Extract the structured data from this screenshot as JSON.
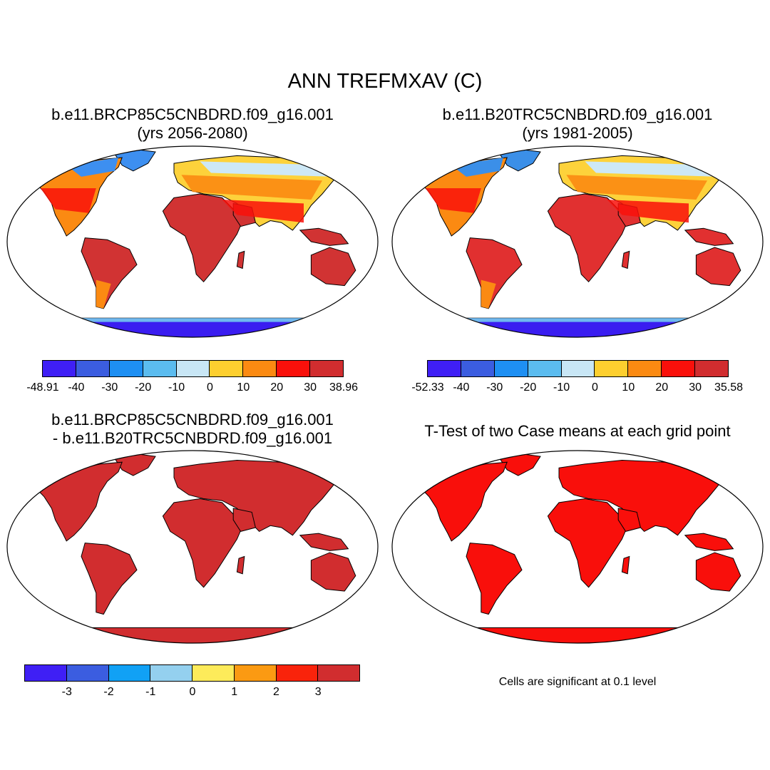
{
  "figure": {
    "title": "ANN TREFMXAV (C)"
  },
  "panels": [
    {
      "id": "case1",
      "title_line1": "b.e11.BRCP85C5CNBDRD.f09_g16.001",
      "title_line2": "(yrs 2056-2080)",
      "palette": "absolute",
      "land_colors": {
        "arctic": "#3d8ff0",
        "highlat": "#cde8f6",
        "midlat": "#fdd23b",
        "subtrop": "#fb8a12",
        "tropics": "#d13333",
        "antarctic": "#3a1df0"
      },
      "colorbar": {
        "labels": [
          "-48.91",
          "-40",
          "-30",
          "-20",
          "-10",
          "0",
          "10",
          "20",
          "30",
          "38.96"
        ],
        "colors": [
          "#3f1ff5",
          "#3b5de0",
          "#1e8ff2",
          "#5bbcef",
          "#c8e6f5",
          "#fdcf2f",
          "#fb8a12",
          "#f9100b",
          "#d12d2f"
        ]
      }
    },
    {
      "id": "case2",
      "title_line1": "b.e11.B20TRC5CNBDRD.f09_g16.001",
      "title_line2": "(yrs 1981-2005)",
      "palette": "absolute",
      "land_colors": {
        "arctic": "#3b8fe8",
        "highlat": "#cde8f6",
        "midlat": "#fdd23b",
        "subtrop": "#fb8a12",
        "tropics": "#e13030",
        "antarctic": "#3a1df0"
      },
      "colorbar": {
        "labels": [
          "-52.33",
          "-40",
          "-30",
          "-20",
          "-10",
          "0",
          "10",
          "20",
          "30",
          "35.58"
        ],
        "colors": [
          "#3f1ff5",
          "#3b5de0",
          "#1e8ff2",
          "#5bbcef",
          "#c8e6f5",
          "#fdcf2f",
          "#fb8a12",
          "#f9100b",
          "#d12d2f"
        ]
      }
    },
    {
      "id": "difference",
      "title_line1": "b.e11.BRCP85C5CNBDRD.f09_g16.001",
      "title_line2": "- b.e11.B20TRC5CNBDRD.f09_g16.001",
      "palette": "difference",
      "land_colors": {
        "all": "#d12d2f"
      },
      "colorbar": {
        "labels": [
          "-3",
          "-2",
          "-1",
          "0",
          "1",
          "2",
          "3"
        ],
        "colors": [
          "#3f1ff5",
          "#3b5de0",
          "#11a1f5",
          "#94d0ef",
          "#fdeb5a",
          "#fb9a12",
          "#f9230b",
          "#d12d2f"
        ]
      }
    },
    {
      "id": "ttest",
      "title_line1": "T-Test of two Case means at each grid point",
      "title_line2": "",
      "palette": "significance",
      "land_colors": {
        "all": "#f90f0b"
      },
      "note": "Cells are significant at 0.1 level"
    }
  ]
}
